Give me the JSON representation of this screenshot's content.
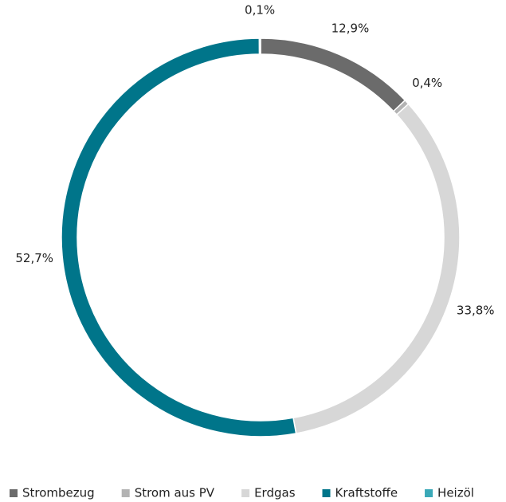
{
  "chart_data": {
    "type": "donut",
    "categories": [
      "Strombezug",
      "Strom aus PV",
      "Erdgas",
      "Kraftstoffe",
      "Heizöl"
    ],
    "values": [
      12.9,
      0.4,
      33.8,
      52.7,
      0.1
    ],
    "value_labels": [
      "12,9%",
      "0,4%",
      "33,8%",
      "52,7%",
      "0,1%"
    ],
    "colors": [
      "#6b6b6b",
      "#b3b3b3",
      "#d7d7d7",
      "#00758a",
      "#3aa9b8"
    ],
    "legend": "bottom"
  }
}
